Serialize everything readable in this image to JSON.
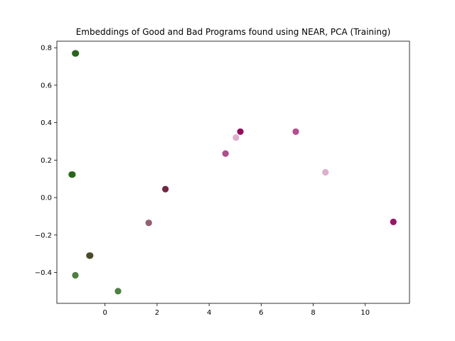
{
  "chart_data": {
    "type": "scatter",
    "title": "Embeddings of Good and Bad Programs found using NEAR, PCA (Training)",
    "xlabel": "",
    "ylabel": "",
    "xlim": [
      -1.85,
      11.7
    ],
    "ylim": [
      -0.565,
      0.835
    ],
    "xticks": [
      0,
      2,
      4,
      6,
      8,
      10
    ],
    "yticks": [
      -0.4,
      -0.2,
      0.0,
      0.2,
      0.4,
      0.6,
      0.8
    ],
    "xtick_labels": [
      "0",
      "2",
      "4",
      "6",
      "8",
      "10"
    ],
    "ytick_labels": [
      "−0.4",
      "−0.2",
      "0.0",
      "0.2",
      "0.4",
      "0.6",
      "0.8"
    ],
    "grid": false,
    "legend": "none",
    "points": [
      {
        "x": -1.15,
        "y": 0.77,
        "color": "#276419",
        "alpha": 0.9
      },
      {
        "x": -1.12,
        "y": 0.77,
        "color": "#276419",
        "alpha": 0.9
      },
      {
        "x": -1.28,
        "y": 0.123,
        "color": "#276419",
        "alpha": 0.9
      },
      {
        "x": -1.25,
        "y": 0.123,
        "color": "#276419",
        "alpha": 0.9
      },
      {
        "x": -0.6,
        "y": -0.31,
        "color": "#4a4a2a",
        "alpha": 0.95
      },
      {
        "x": -0.57,
        "y": -0.31,
        "color": "#4a4a2a",
        "alpha": 0.95
      },
      {
        "x": -1.14,
        "y": -0.415,
        "color": "#2f6a22",
        "alpha": 0.85
      },
      {
        "x": 0.5,
        "y": -0.5,
        "color": "#2f6a22",
        "alpha": 0.85
      },
      {
        "x": 1.68,
        "y": -0.135,
        "color": "#7a3a52",
        "alpha": 0.8
      },
      {
        "x": 2.32,
        "y": 0.045,
        "color": "#6b1a3a",
        "alpha": 0.95
      },
      {
        "x": 4.63,
        "y": 0.235,
        "color": "#a0307a",
        "alpha": 0.85
      },
      {
        "x": 5.03,
        "y": 0.32,
        "color": "#d8a6c8",
        "alpha": 0.9
      },
      {
        "x": 5.2,
        "y": 0.352,
        "color": "#8e0152",
        "alpha": 0.95
      },
      {
        "x": 7.33,
        "y": 0.352,
        "color": "#a8307e",
        "alpha": 0.85
      },
      {
        "x": 8.47,
        "y": 0.135,
        "color": "#d8a6c8",
        "alpha": 0.9
      },
      {
        "x": 11.08,
        "y": -0.13,
        "color": "#950a5e",
        "alpha": 0.95
      }
    ]
  }
}
